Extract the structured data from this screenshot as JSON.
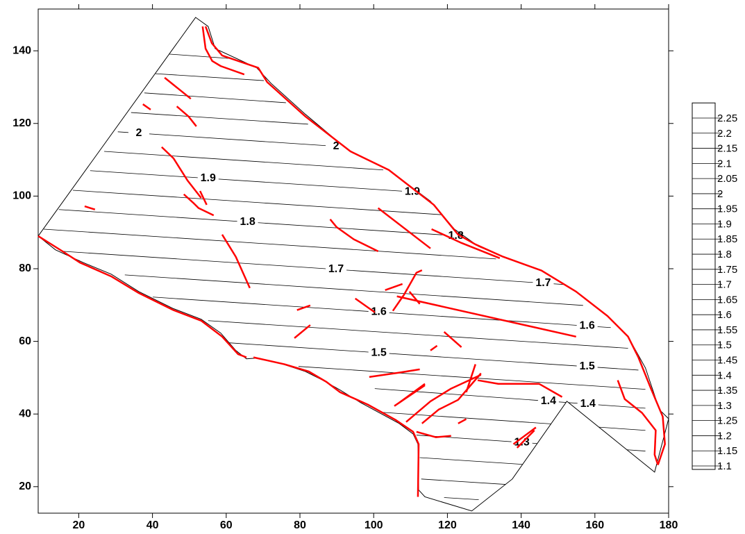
{
  "chart_data": {
    "type": "contour",
    "xlim": [
      9,
      180
    ],
    "ylim": [
      12.7,
      151.5
    ],
    "xticks": [
      20,
      40,
      60,
      80,
      100,
      120,
      140,
      160,
      180
    ],
    "yticks": [
      20,
      40,
      60,
      80,
      100,
      120,
      140
    ],
    "line_color": "#000000",
    "fault_color": "#ff0000",
    "boundary": {
      "x": [
        9,
        51.7,
        55.1,
        57.0,
        68.3,
        72.1,
        81.5,
        92.8,
        104.1,
        115.4,
        121.9,
        128.5,
        136.1,
        145.5,
        154.9,
        163.4,
        169.0,
        173.7,
        177.5,
        180,
        176.2,
        152.4,
        137.6,
        126.6,
        113.9,
        112.2,
        112.0,
        110.7,
        106.9,
        96.5,
        90.9,
        86.2,
        81.5,
        73.9,
        68.3,
        65.5,
        62.6,
        58.5,
        53.2,
        45.7,
        36.3,
        28.8,
        21.2,
        13.7
      ],
      "y": [
        89.0,
        149.2,
        146.7,
        140.6,
        135.3,
        131.1,
        122.5,
        112.9,
        107.2,
        98.6,
        90.9,
        86.1,
        82.9,
        79.5,
        73.7,
        67.0,
        61.3,
        52.7,
        41.2,
        38.7,
        24.0,
        43.5,
        22.1,
        13.3,
        17.2,
        19.1,
        31.7,
        34.5,
        37.4,
        43.1,
        46.6,
        49.3,
        51.7,
        54.2,
        55.4,
        55.2,
        57.5,
        62.3,
        66.1,
        69.0,
        73.7,
        78.5,
        81.7,
        85.2
      ]
    },
    "contours": [
      {
        "level": 2.2,
        "x": [
          44.4,
          60.8
        ],
        "y": [
          139.1,
          137.9
        ]
      },
      {
        "level": 2.15,
        "x": [
          40.8,
          70.2
        ],
        "y": [
          133.7,
          131.8
        ]
      },
      {
        "level": 2.1,
        "x": [
          37.8,
          76.2
        ],
        "y": [
          128.4,
          125.7
        ]
      },
      {
        "level": 2.05,
        "x": [
          34.2,
          82.2
        ],
        "y": [
          123.0,
          119.8
        ]
      },
      {
        "level": 2,
        "x": [
          30.6,
          92.8
        ],
        "y": [
          117.7,
          113.5
        ],
        "label_x": [
          36.3,
          89.8
        ]
      },
      {
        "level": 1.95,
        "x": [
          26.9,
          102.6
        ],
        "y": [
          112.3,
          107.2
        ]
      },
      {
        "level": 1.9,
        "x": [
          23.1,
          120.6
        ],
        "y": [
          107.0,
          100.5
        ],
        "label_x": [
          55.1,
          110.5
        ]
      },
      {
        "level": 1.85,
        "x": [
          18.4,
          121.0
        ],
        "y": [
          101.6,
          94.7
        ]
      },
      {
        "level": 1.8,
        "x": [
          14.6,
          132.3
        ],
        "y": [
          96.3,
          88.4
        ],
        "label_x": [
          65.8,
          122.3
        ]
      },
      {
        "level": 1.75,
        "x": [
          10.5,
          133.2
        ],
        "y": [
          90.9,
          82.7
        ]
      },
      {
        "level": 1.7,
        "x": [
          15.6,
          156.8
        ],
        "y": [
          84.8,
          75.3
        ],
        "label_x": [
          89.8,
          146.0
        ]
      },
      {
        "level": 1.65,
        "x": [
          32.5,
          156.8
        ],
        "y": [
          78.3,
          69.9
        ]
      },
      {
        "level": 1.6,
        "x": [
          40.1,
          164.3
        ],
        "y": [
          72.2,
          63.8
        ],
        "label_x": [
          101.4,
          157.9
        ]
      },
      {
        "level": 1.55,
        "x": [
          55.1,
          169.0
        ],
        "y": [
          65.7,
          58.1
        ]
      },
      {
        "level": 1.5,
        "x": [
          60.8,
          171.8
        ],
        "y": [
          59.6,
          52.1
        ],
        "label_x": [
          101.4,
          157.9
        ]
      },
      {
        "level": 1.45,
        "x": [
          79.6,
          173.7
        ],
        "y": [
          53.1,
          46.8
        ]
      },
      {
        "level": 1.4,
        "x": [
          100.3,
          173.7
        ],
        "y": [
          47.0,
          41.6
        ],
        "label_x": [
          147.4,
          158.1
        ]
      },
      {
        "level": 1.35,
        "x": [
          101.8,
          173.7
        ],
        "y": [
          40.5,
          35.5
        ]
      },
      {
        "level": 1.3,
        "x": [
          111.6,
          173.7
        ],
        "y": [
          34.2,
          29.8
        ],
        "label_x": [
          140.2
        ]
      },
      {
        "level": 1.25,
        "x": [
          112.5,
          175.6
        ],
        "y": [
          28.0,
          23.8
        ]
      },
      {
        "level": 1.2,
        "x": [
          112.9,
          136.1
        ],
        "y": [
          22.1,
          20.6
        ]
      },
      {
        "level": 1.15,
        "x": [
          119.1,
          128.5
        ],
        "y": [
          17.0,
          16.4
        ]
      }
    ],
    "faults": [
      {
        "x": [
          54.4,
          56.1,
          58.9,
          68.7,
          71.1,
          81.5,
          93.7,
          104.1,
          116.3,
          122.9,
          127.6,
          135.1,
          145.5,
          154.9,
          163.4,
          169.0,
          171.8,
          175.2,
          178.4,
          179.0,
          177.1
        ],
        "y": [
          146.7,
          142.1,
          138.7,
          135.3,
          131.4,
          121.9,
          112.3,
          107.2,
          97.6,
          89.4,
          86.7,
          83.3,
          79.5,
          73.7,
          67.0,
          61.3,
          55.6,
          47.0,
          39.3,
          31.7,
          26.0
        ]
      },
      {
        "x": [
          53.6,
          54.4,
          56.2,
          58.5,
          64.9
        ],
        "y": [
          146.7,
          140.6,
          137.2,
          135.8,
          133.5
        ]
      },
      {
        "x": [
          166.2,
          168.1,
          172.8,
          176.5,
          176.2,
          177.1
        ],
        "y": [
          49.3,
          44.1,
          40.3,
          35.5,
          28.8,
          26.0
        ]
      },
      {
        "x": [
          9,
          15.6,
          20.3,
          28.8,
          36.3,
          45.7,
          53.2,
          58.9,
          63.2,
          65.5
        ],
        "y": [
          89.0,
          84.8,
          81.7,
          77.9,
          73.3,
          68.6,
          65.7,
          61.3,
          56.5,
          55.6
        ]
      },
      {
        "x": [
          67.4,
          75.8,
          82.4,
          87.1,
          90.9,
          98.4,
          105.9,
          110.7,
          112.2,
          112.0
        ],
        "y": [
          55.6,
          53.7,
          51.7,
          48.9,
          46.0,
          42.6,
          38.4,
          35.1,
          31.7,
          17.2
        ]
      },
      {
        "x": [
          43.3,
          50.4
        ],
        "y": [
          132.6,
          126.8
        ]
      },
      {
        "x": [
          37.4,
          39.5
        ],
        "y": [
          125.3,
          123.8
        ]
      },
      {
        "x": [
          46.6,
          49.8,
          51.9
        ],
        "y": [
          124.7,
          121.9,
          119.2
        ]
      },
      {
        "x": [
          42.5,
          45.7,
          49.5,
          53.2
        ],
        "y": [
          113.5,
          110.4,
          104.3,
          99.5
        ]
      },
      {
        "x": [
          48.5,
          51.0,
          52.5,
          56.6
        ],
        "y": [
          100.5,
          98.2,
          96.7,
          94.7
        ]
      },
      {
        "x": [
          52.9,
          54.7
        ],
        "y": [
          101.4,
          97.6
        ]
      },
      {
        "x": [
          21.6,
          24.4
        ],
        "y": [
          97.2,
          96.3
        ]
      },
      {
        "x": [
          58.9,
          62.6,
          66.4
        ],
        "y": [
          89.4,
          83.3,
          74.7
        ]
      },
      {
        "x": [
          88.2,
          89.9,
          94.6,
          101.2
        ],
        "y": [
          93.6,
          91.5,
          88.1,
          84.8
        ]
      },
      {
        "x": [
          101.2,
          115.4
        ],
        "y": [
          96.7,
          85.6
        ]
      },
      {
        "x": [
          115.7,
          123.8,
          134.2
        ],
        "y": [
          90.9,
          87.1,
          82.9
        ]
      },
      {
        "x": [
          79.2,
          82.8
        ],
        "y": [
          68.6,
          69.9
        ]
      },
      {
        "x": [
          78.5,
          82.8
        ],
        "y": [
          60.9,
          64.5
        ]
      },
      {
        "x": [
          95.0,
          100.3
        ],
        "y": [
          71.8,
          68.0
        ]
      },
      {
        "x": [
          103.1,
          107.8
        ],
        "y": [
          74.1,
          75.8
        ]
      },
      {
        "x": [
          113.1,
          111.6,
          108.2,
          105.2
        ],
        "y": [
          79.6,
          78.9,
          72.8,
          68.4
        ]
      },
      {
        "x": [
          106.3,
          154.9
        ],
        "y": [
          72.4,
          61.3
        ]
      },
      {
        "x": [
          109.7,
          112.5
        ],
        "y": [
          73.7,
          70.3
        ]
      },
      {
        "x": [
          119.1,
          123.8
        ],
        "y": [
          62.6,
          58.4
        ]
      },
      {
        "x": [
          115.4,
          117.2
        ],
        "y": [
          57.5,
          58.8
        ]
      },
      {
        "x": [
          98.8,
          106.9,
          112.5
        ],
        "y": [
          50.2,
          51.4,
          52.3
        ]
      },
      {
        "x": [
          105.6,
          113.9
        ],
        "y": [
          42.2,
          47.9
        ]
      },
      {
        "x": [
          106.9,
          113.9
        ],
        "y": [
          43.1,
          48.3
        ]
      },
      {
        "x": [
          108.8,
          115.4,
          121.0,
          129.1
        ],
        "y": [
          37.8,
          43.5,
          47.0,
          50.8
        ]
      },
      {
        "x": [
          113.1,
          117.6,
          122.9,
          129.1
        ],
        "y": [
          37.4,
          41.2,
          43.9,
          51.2
        ]
      },
      {
        "x": [
          127.6,
          125.1
        ],
        "y": [
          53.7,
          46.0
        ]
      },
      {
        "x": [
          128.2,
          133.8,
          144.9,
          151.1
        ],
        "y": [
          49.3,
          48.3,
          48.3,
          44.7
        ]
      },
      {
        "x": [
          122.9,
          125.1
        ],
        "y": [
          37.4,
          38.6
        ]
      },
      {
        "x": [
          137.9,
          144.0
        ],
        "y": [
          31.7,
          36.3
        ]
      },
      {
        "x": [
          138.9,
          143.6
        ],
        "y": [
          30.7,
          35.5
        ]
      },
      {
        "x": [
          111.6,
          116.9,
          121.0
        ],
        "y": [
          35.1,
          33.6,
          34.0
        ]
      }
    ],
    "colorbar_levels": [
      2.25,
      2.2,
      2.15,
      2.1,
      2.05,
      2,
      1.95,
      1.9,
      1.85,
      1.8,
      1.75,
      1.7,
      1.65,
      1.6,
      1.55,
      1.5,
      1.45,
      1.4,
      1.35,
      1.3,
      1.25,
      1.2,
      1.15,
      1.1
    ]
  }
}
